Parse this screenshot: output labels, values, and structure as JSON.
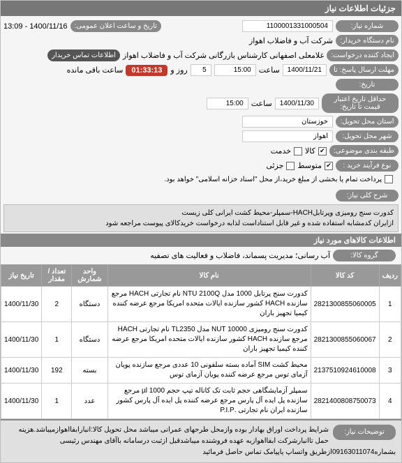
{
  "header": {
    "title": "جزئیات اطلاعات نیاز"
  },
  "form": {
    "need_number_label": "شماره نیاز:",
    "need_number": "1100001331000504",
    "announce_label": "تاریخ و ساعت اعلان عمومی:",
    "announce_value": "1400/11/16 - 13:09",
    "org_label": "نام دستگاه خریدار:",
    "org_value": "شرکت آب و فاضلاب اهواز",
    "creator_label": "ایجاد کننده درخواست:",
    "creator_value": "غلامعلی اصفهانی کارشناس بازرگانی شرکت آب و فاضلاب اهواز",
    "contact_badge": "اطلاعات تماس خریدار",
    "deadline_label": "مهلت ارسال پاسخ: تا",
    "deadline_date": "1400/11/21",
    "deadline_hour_label": "ساعت",
    "deadline_hour": "15:00",
    "days": "5",
    "days_label": "روز و",
    "remain_timer": "01:33:13",
    "remain_label": "ساعت باقی مانده",
    "history_label": "تاریخ:",
    "validity_label": "حداقل تاریخ اعتبار",
    "validity_sub": "قیمت تا تاریخ:",
    "validity_date": "1400/11/30",
    "validity_hour_label": "ساعت",
    "validity_hour": "15:00",
    "province_label": "استان محل تحویل:",
    "province": "خوزستان",
    "city_label": "شهر محل تحویل:",
    "city": "اهواز",
    "category_label": "طبقه بندی موضوعی:",
    "cat_goods": "کالا",
    "cat_service": "خدمت",
    "cat_goods_checked": true,
    "cat_service_checked": false,
    "process_label": "نوع فرآیند خرید :",
    "proc_medium": "متوسط",
    "proc_small": "جزئی",
    "proc_medium_checked": true,
    "proc_small_checked": false,
    "payment_note": "پرداخت تمام یا بخشی از مبلغ خرید،از محل \"اسناد خزانه اسلامی\" خواهد بود.",
    "payment_checked": false
  },
  "need_desc": {
    "label": "شرح کلی نیاز:",
    "text": "کدورت سنج رومیزی وپرتابلHACH-سمپلر-محیط کشت ایرانی کلی زیست\nازایران کدمشابه استفاده شده و غیر قابل استناداست لذابه درخواست خریدکالای پیوست مراجعه شود"
  },
  "items_section": {
    "title": "اطلاعات کالاهای مورد نیاز",
    "group_label": "گروه کالا:",
    "group_value": "آب رسانی؛ مدیریت پسماند، فاضلاب و فعالیت های تصفیه"
  },
  "table": {
    "cols": [
      "ردیف",
      "کد کالا",
      "نام کالا",
      "واحد شمارش",
      "تعداد / مقدار",
      "تاریخ نیاز"
    ],
    "rows": [
      {
        "n": "1",
        "code": "2821300855060005",
        "name": "کدورت سنج پرتابل 1000 مدل NTU 2100Q نام تجارتی HACH مرجع سازنده HACH کشور سازنده ایالات متحده امریکا مرجع عرضه کننده کیمیا تجهیز باران",
        "unit": "دستگاه",
        "qty": "2",
        "date": "1400/11/30"
      },
      {
        "n": "2",
        "code": "2821300855060067",
        "name": "کدورت سنج رومیزی NUT 10000 مدل TL2350 نام تجارتی HACH مرجع سازنده HACH کشور سازنده ایالات متحده امریکا مرجع عرضه کننده کیمیا تجهیز باران",
        "unit": "دستگاه",
        "qty": "1",
        "date": "1400/11/30"
      },
      {
        "n": "3",
        "code": "2137510924610008",
        "name": "محیط کشت SIM آماده بسته سلفونی 10 عددی مرجع سازنده پویان آزمای توس مرجع عرضه کننده پویان آزمای توس",
        "unit": "بسته",
        "qty": "192",
        "date": "1400/11/30"
      },
      {
        "n": "4",
        "code": "2821400808750073",
        "name": "سمپلر آزمایشگاهی حجم ثابت تک کاناله تیپ حجم 1000 µl مرجع سازنده پل ایده آل پارس مرجع عرضه کننده پل ایده آل پارس کشور سازنده ایران نام تجارتی .P.I.P",
        "unit": "عدد",
        "qty": "1",
        "date": "1400/11/30"
      }
    ]
  },
  "notes": {
    "label": "توضیحات نیاز:",
    "text": "شرایط پرداخت اوراق بهادار بوده وازمحل طرحهای عمرانی میباشد محل تحویل کالا:انبارابفااهوازمیباشد.هزینه حمل تاانبارشرکت ابفااهوازبه عهده فروشنده میباشدقبل ازثبت درسامانه باآقای مهندس رئیسی بشماره09163011074ازطریق واتساپ یاپیامک تماس حاصل فرمائید"
  }
}
